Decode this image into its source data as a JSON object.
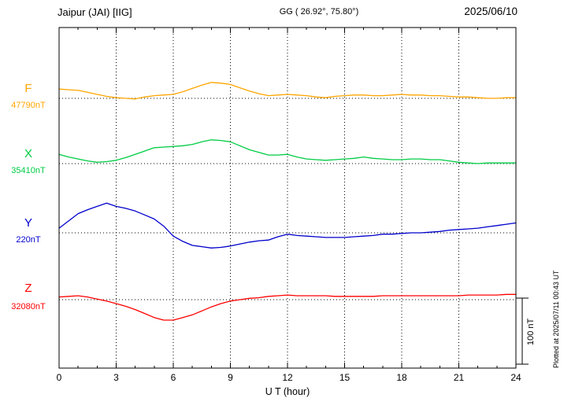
{
  "header": {
    "station": "Jaipur (JAI)  [IIG]",
    "coords": "GG ( 26.92°, 75.80°)",
    "date": "2025/06/10"
  },
  "xaxis": {
    "label": "U T (hour)",
    "ticks": [
      0,
      3,
      6,
      9,
      12,
      15,
      18,
      21,
      24
    ],
    "min": 0,
    "max": 24
  },
  "scale_bar": {
    "label": "100 nT",
    "nT": 100
  },
  "footer_note": "Plotted at 2025/07/11 00:43 UT",
  "chart_data": {
    "type": "line",
    "title": "Jaipur (JAI) [IIG] magnetogram 2025/06/10",
    "xlabel": "U T (hour)",
    "x_range": [
      0,
      24
    ],
    "grid": "vertical dotted gridlines every 3 h; dotted horizontal baseline per component",
    "legend_position": "left margin (component letter + baseline value)",
    "x": [
      0,
      0.5,
      1,
      1.5,
      2,
      2.5,
      3,
      3.5,
      4,
      4.5,
      5,
      5.5,
      6,
      6.5,
      7,
      7.5,
      8,
      8.5,
      9,
      9.5,
      10,
      10.5,
      11,
      11.5,
      12,
      12.5,
      13,
      13.5,
      14,
      14.5,
      15,
      15.5,
      16,
      16.5,
      17,
      17.5,
      18,
      18.5,
      19,
      19.5,
      20,
      20.5,
      21,
      21.5,
      22,
      22.5,
      23,
      23.5,
      24
    ],
    "series": [
      {
        "component": "F",
        "baseline_label": "47790nT",
        "baseline_nT": 47790,
        "color": "#FFA500",
        "offsets_nT": [
          14,
          13,
          12,
          9,
          6,
          3,
          1,
          0,
          -1,
          2,
          4,
          5,
          6,
          10,
          15,
          20,
          24,
          23,
          21,
          16,
          11,
          7,
          4,
          5,
          6,
          5,
          4,
          2,
          1,
          3,
          4,
          5,
          5,
          4,
          4,
          5,
          6,
          5,
          5,
          4,
          4,
          3,
          2,
          2,
          1,
          0,
          0,
          1,
          1
        ]
      },
      {
        "component": "X",
        "baseline_label": "35410nT",
        "baseline_nT": 35410,
        "color": "#00CC44",
        "offsets_nT": [
          14,
          10,
          7,
          4,
          2,
          3,
          5,
          9,
          14,
          19,
          24,
          25,
          26,
          27,
          29,
          33,
          36,
          35,
          33,
          27,
          21,
          17,
          13,
          13,
          14,
          10,
          7,
          6,
          5,
          6,
          7,
          8,
          10,
          8,
          7,
          6,
          6,
          7,
          7,
          6,
          6,
          4,
          2,
          1,
          0,
          1,
          1,
          1,
          1
        ]
      },
      {
        "component": "Y",
        "baseline_label": "220nT",
        "baseline_nT": 220,
        "color": "#0000CC",
        "offsets_nT": [
          7,
          18,
          29,
          35,
          40,
          45,
          40,
          37,
          33,
          27,
          21,
          10,
          -5,
          -13,
          -19,
          -21,
          -23,
          -22,
          -20,
          -17,
          -14,
          -12,
          -11,
          -6,
          -2,
          -4,
          -5,
          -6,
          -7,
          -7,
          -7,
          -6,
          -5,
          -4,
          -2,
          -2,
          -1,
          0,
          0,
          1,
          2,
          4,
          5,
          6,
          7,
          9,
          11,
          13,
          15
        ],
        "unit_note": "scale bar = 100 nT"
      },
      {
        "component": "Z",
        "baseline_label": "32080nT",
        "baseline_nT": 32080,
        "color": "#FF0000",
        "offsets_nT": [
          4,
          5,
          6,
          4,
          1,
          -2,
          -6,
          -10,
          -15,
          -21,
          -27,
          -31,
          -31,
          -27,
          -23,
          -17,
          -11,
          -6,
          -2,
          0,
          2,
          3,
          5,
          6,
          7,
          6,
          6,
          6,
          6,
          5,
          5,
          5,
          5,
          5,
          6,
          6,
          6,
          6,
          6,
          6,
          6,
          6,
          6,
          7,
          7,
          7,
          7,
          8,
          8
        ]
      }
    ]
  }
}
